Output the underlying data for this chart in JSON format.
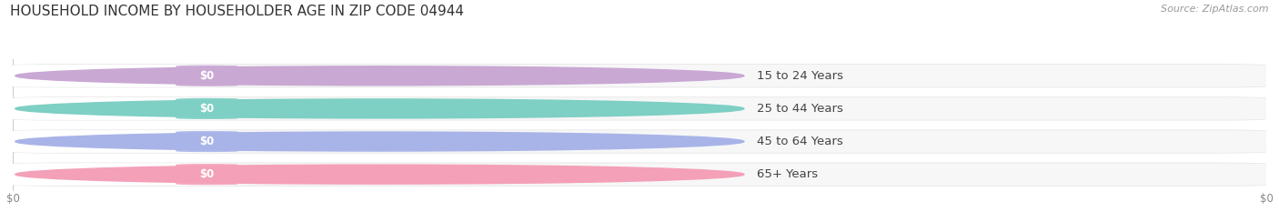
{
  "title": "HOUSEHOLD INCOME BY HOUSEHOLDER AGE IN ZIP CODE 04944",
  "source": "Source: ZipAtlas.com",
  "categories": [
    "15 to 24 Years",
    "25 to 44 Years",
    "45 to 64 Years",
    "65+ Years"
  ],
  "values": [
    0,
    0,
    0,
    0
  ],
  "bar_colors": [
    "#c9a8d4",
    "#7ecfc4",
    "#a8b4e8",
    "#f4a0b8"
  ],
  "background_color": "#ffffff",
  "title_fontsize": 11,
  "source_fontsize": 8,
  "label_fontsize": 9.5
}
